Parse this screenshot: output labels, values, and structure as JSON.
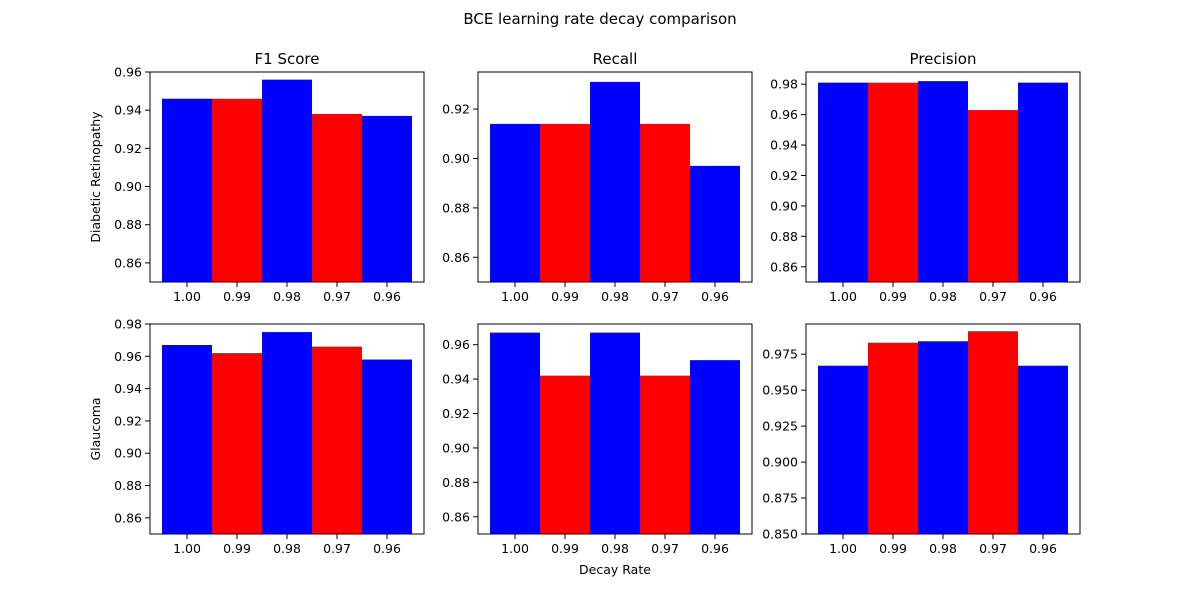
{
  "figure": {
    "title": "BCE learning rate decay comparison",
    "xlabel": "Decay Rate"
  },
  "row_labels": [
    "Diabetic Retinopathy",
    "Glaucoma"
  ],
  "col_titles": [
    "F1 Score",
    "Recall",
    "Precision"
  ],
  "colors": {
    "a": "#0000ff",
    "b": "#ff0000"
  },
  "chart_data": [
    {
      "type": "bar",
      "title": "F1 Score",
      "ylabel": "Diabetic Retinopathy",
      "categories": [
        "1.00",
        "0.99",
        "0.98",
        "0.97",
        "0.96"
      ],
      "values": [
        0.946,
        0.946,
        0.956,
        0.938,
        0.937
      ],
      "colors": [
        "#0000ff",
        "#ff0000",
        "#0000ff",
        "#ff0000",
        "#0000ff"
      ],
      "ylim": [
        0.85,
        0.96
      ],
      "yticks": [
        0.86,
        0.88,
        0.9,
        0.92,
        0.94,
        0.96
      ],
      "ytick_labels": [
        "0.86",
        "0.88",
        "0.90",
        "0.92",
        "0.94",
        "0.96"
      ]
    },
    {
      "type": "bar",
      "title": "Recall",
      "categories": [
        "1.00",
        "0.99",
        "0.98",
        "0.97",
        "0.96"
      ],
      "values": [
        0.914,
        0.914,
        0.931,
        0.914,
        0.897
      ],
      "colors": [
        "#0000ff",
        "#ff0000",
        "#0000ff",
        "#ff0000",
        "#0000ff"
      ],
      "ylim": [
        0.85,
        0.935
      ],
      "yticks": [
        0.86,
        0.88,
        0.9,
        0.92
      ],
      "ytick_labels": [
        "0.86",
        "0.88",
        "0.90",
        "0.92"
      ]
    },
    {
      "type": "bar",
      "title": "Precision",
      "categories": [
        "1.00",
        "0.99",
        "0.98",
        "0.97",
        "0.96"
      ],
      "values": [
        0.981,
        0.981,
        0.982,
        0.963,
        0.981
      ],
      "colors": [
        "#0000ff",
        "#ff0000",
        "#0000ff",
        "#ff0000",
        "#0000ff"
      ],
      "ylim": [
        0.85,
        0.988
      ],
      "yticks": [
        0.86,
        0.88,
        0.9,
        0.92,
        0.94,
        0.96,
        0.98
      ],
      "ytick_labels": [
        "0.86",
        "0.88",
        "0.90",
        "0.92",
        "0.94",
        "0.96",
        "0.98"
      ]
    },
    {
      "type": "bar",
      "ylabel": "Glaucoma",
      "categories": [
        "1.00",
        "0.99",
        "0.98",
        "0.97",
        "0.96"
      ],
      "values": [
        0.967,
        0.962,
        0.975,
        0.966,
        0.958
      ],
      "colors": [
        "#0000ff",
        "#ff0000",
        "#0000ff",
        "#ff0000",
        "#0000ff"
      ],
      "ylim": [
        0.85,
        0.98
      ],
      "yticks": [
        0.86,
        0.88,
        0.9,
        0.92,
        0.94,
        0.96,
        0.98
      ],
      "ytick_labels": [
        "0.86",
        "0.88",
        "0.90",
        "0.92",
        "0.94",
        "0.96",
        "0.98"
      ]
    },
    {
      "type": "bar",
      "xlabel": "Decay Rate",
      "categories": [
        "1.00",
        "0.99",
        "0.98",
        "0.97",
        "0.96"
      ],
      "values": [
        0.967,
        0.942,
        0.967,
        0.942,
        0.951
      ],
      "colors": [
        "#0000ff",
        "#ff0000",
        "#0000ff",
        "#ff0000",
        "#0000ff"
      ],
      "ylim": [
        0.85,
        0.972
      ],
      "yticks": [
        0.86,
        0.88,
        0.9,
        0.92,
        0.94,
        0.96
      ],
      "ytick_labels": [
        "0.86",
        "0.88",
        "0.90",
        "0.92",
        "0.94",
        "0.96"
      ]
    },
    {
      "type": "bar",
      "categories": [
        "1.00",
        "0.99",
        "0.98",
        "0.97",
        "0.96"
      ],
      "values": [
        0.967,
        0.983,
        0.984,
        0.991,
        0.967
      ],
      "colors": [
        "#0000ff",
        "#ff0000",
        "#0000ff",
        "#ff0000",
        "#0000ff"
      ],
      "ylim": [
        0.85,
        0.996
      ],
      "yticks": [
        0.85,
        0.875,
        0.9,
        0.925,
        0.95,
        0.975
      ],
      "ytick_labels": [
        "0.850",
        "0.875",
        "0.900",
        "0.925",
        "0.950",
        "0.975"
      ]
    }
  ]
}
